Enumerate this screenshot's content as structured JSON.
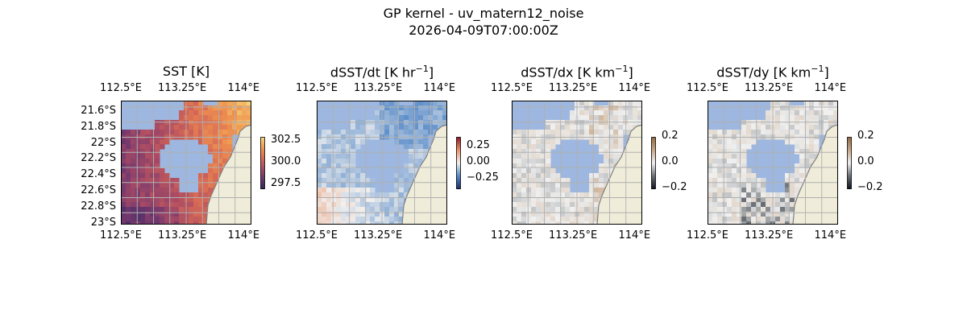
{
  "figure": {
    "title_line1": "GP kernel - uv_matern12_noise",
    "title_line2": "2026-04-09T07:00:00Z"
  },
  "colors": {
    "land": "#efecd9",
    "ocean_mask": "#9db7e0",
    "coastline": "#7f7f7f",
    "grid": "#b0b0b0"
  },
  "chart_data": [
    {
      "type": "heatmap",
      "title": "SST [K]",
      "title_unit_sup": "",
      "colormap": "thermal (dark purple → orange)",
      "x_ticks": [
        "112.5°E",
        "113.25°E",
        "114°E"
      ],
      "x_ticks_top": [
        "112.5°E",
        "113.25°E",
        "114°E"
      ],
      "y_ticks": [
        "21.6°S",
        "21.8°S",
        "22°S",
        "22.2°S",
        "22.4°S",
        "22.6°S",
        "22.8°S",
        "23°S"
      ],
      "xlim": [
        112.5,
        114.0
      ],
      "ylim": [
        -23.0,
        -21.5
      ],
      "colorbar_ticks": [
        "302.5",
        "300.0",
        "297.5"
      ],
      "colorbar_range": [
        297.0,
        303.0
      ],
      "grid": true
    },
    {
      "type": "heatmap",
      "title": "dSST/dt [K hr",
      "title_unit_sup": "−1",
      "colormap": "diverging (blue → white → red)",
      "x_ticks": [
        "112.5°E",
        "113.25°E",
        "114°E"
      ],
      "x_ticks_top": [
        "112.5°E",
        "113.25°E",
        "114°E"
      ],
      "xlim": [
        112.5,
        114.0
      ],
      "ylim": [
        -23.0,
        -21.5
      ],
      "colorbar_ticks": [
        "0.25",
        "0.00",
        "−0.25"
      ],
      "colorbar_range": [
        -0.4,
        0.4
      ],
      "grid": true
    },
    {
      "type": "heatmap",
      "title": "dSST/dx [K km",
      "title_unit_sup": "−1",
      "colormap": "diverging (dark → white → brown)",
      "x_ticks": [
        "112.5°E",
        "113.25°E",
        "114°E"
      ],
      "x_ticks_top": [
        "112.5°E",
        "113.25°E",
        "114°E"
      ],
      "xlim": [
        112.5,
        114.0
      ],
      "ylim": [
        -23.0,
        -21.5
      ],
      "colorbar_ticks": [
        "0.2",
        "0.0",
        "−0.2"
      ],
      "colorbar_range": [
        -0.2,
        0.2
      ],
      "grid": true
    },
    {
      "type": "heatmap",
      "title": "dSST/dy [K km",
      "title_unit_sup": "−1",
      "colormap": "diverging (dark → white → brown)",
      "x_ticks": [
        "112.5°E",
        "113.25°E",
        "114°E"
      ],
      "x_ticks_top": [
        "112.5°E",
        "113.25°E",
        "114°E"
      ],
      "xlim": [
        112.5,
        114.0
      ],
      "ylim": [
        -23.0,
        -21.5
      ],
      "colorbar_ticks": [
        "0.2",
        "0.0",
        "−0.2"
      ],
      "colorbar_range": [
        -0.2,
        0.2
      ],
      "grid": true
    }
  ]
}
